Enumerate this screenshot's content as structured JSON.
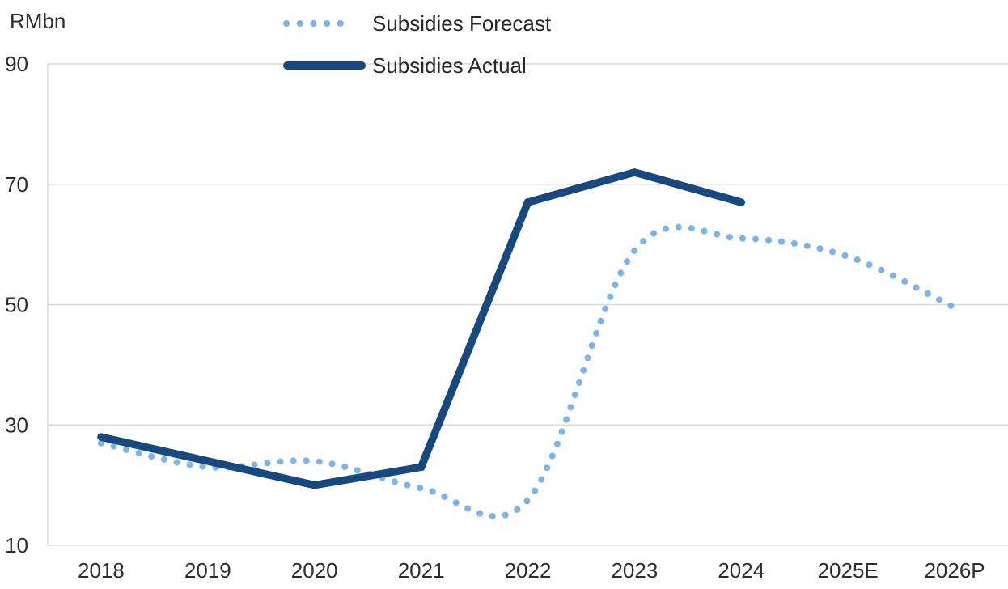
{
  "chart_data": {
    "type": "line",
    "title": "",
    "ylabel": "RMbn",
    "xlabel": "",
    "categories": [
      "2018",
      "2019",
      "2020",
      "2021",
      "2022",
      "2023",
      "2024",
      "2025E",
      "2026P"
    ],
    "y_ticks": [
      10,
      30,
      50,
      70,
      90
    ],
    "ylim": [
      10,
      90
    ],
    "grid": "horizontal",
    "legend_position": "top-center",
    "series": [
      {
        "name": "Subsidies Forecast",
        "style": "dotted",
        "color": "#7DB3E6",
        "values": [
          27,
          23,
          24,
          19.5,
          17.5,
          59,
          61,
          58,
          49.5
        ]
      },
      {
        "name": "Subsidies Actual",
        "style": "solid",
        "color": "#17497E",
        "values": [
          28,
          24,
          20,
          23,
          67,
          72,
          67,
          null,
          null
        ]
      }
    ]
  }
}
